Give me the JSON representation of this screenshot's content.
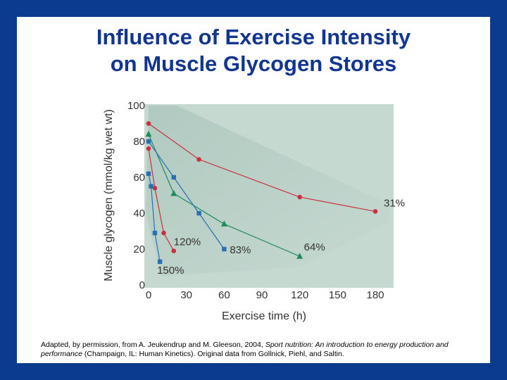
{
  "slide": {
    "title_line1": "Influence of Exercise Intensity",
    "title_line2": "on Muscle Glycogen Stores",
    "caption_part1": "Adapted, by permission, from A. Jeukendrup and M. Gleeson, 2004, ",
    "caption_italic": "Sport nutrition: An introduction to energy production and performance",
    "caption_part2": " (Champaign, IL: Human Kinetics). Original data from Gollnick, Piehl, and Saltin.",
    "colors": {
      "background": "#0b3b8f",
      "title": "#12358f",
      "plot_area": "#c6d9d1",
      "red": "#c8313f",
      "blue": "#2a6fb3",
      "green": "#1f8a5a"
    }
  },
  "chart_data": {
    "type": "line",
    "xlabel": "Exercise time (h)",
    "ylabel": "Muscle glycogen (mmol/kg wet wt)",
    "xlim": [
      0,
      180
    ],
    "ylim": [
      0,
      100
    ],
    "xticks": [
      0,
      30,
      60,
      90,
      120,
      150,
      180
    ],
    "yticks": [
      0,
      20,
      40,
      60,
      80,
      100
    ],
    "grid": false,
    "series": [
      {
        "name": "31%",
        "marker": "circle",
        "color": "#c8313f",
        "x": [
          0,
          40,
          120,
          180
        ],
        "y": [
          90,
          70,
          49,
          41
        ]
      },
      {
        "name": "64%",
        "marker": "triangle",
        "color": "#1f8a5a",
        "x": [
          0,
          20,
          60,
          120
        ],
        "y": [
          84,
          51,
          34,
          16
        ]
      },
      {
        "name": "83%",
        "marker": "square",
        "color": "#2a6fb3",
        "x": [
          0,
          20,
          40,
          60
        ],
        "y": [
          80,
          60,
          40,
          20
        ]
      },
      {
        "name": "120%",
        "marker": "circle",
        "color": "#c8313f",
        "x": [
          0,
          5,
          12,
          20
        ],
        "y": [
          76,
          54,
          29,
          19
        ]
      },
      {
        "name": "150%",
        "marker": "square",
        "color": "#2a6fb3",
        "x": [
          0,
          2,
          5,
          9
        ],
        "y": [
          62,
          55,
          29,
          13
        ]
      }
    ],
    "annotations": [
      {
        "text": "31%",
        "series": 0
      },
      {
        "text": "64%",
        "series": 1
      },
      {
        "text": "83%",
        "series": 2
      },
      {
        "text": "120%",
        "series": 3
      },
      {
        "text": "150%",
        "series": 4
      }
    ]
  }
}
